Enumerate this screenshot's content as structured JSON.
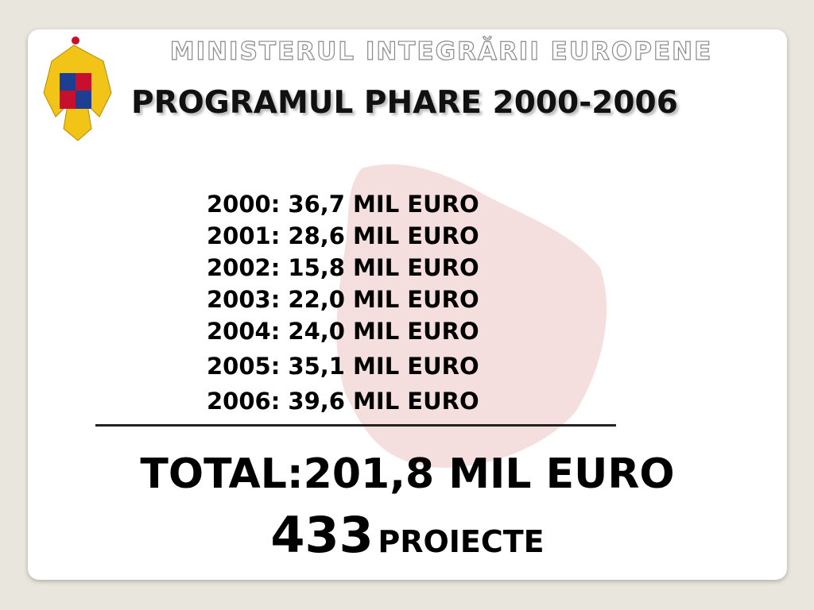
{
  "header": {
    "ministry": "MINISTERUL INTEGRĂRII EUROPENE",
    "program": "PROGRAMUL PHARE 2000-2006"
  },
  "lines": [
    "2000: 36,7 MIL EURO",
    "2001: 28,6 MIL EURO",
    "2002: 15,8 MIL EURO",
    "2003: 22,0 MIL EURO",
    "2004: 24,0 MIL EURO",
    "2005: 35,1 MIL EURO",
    "2006: 39,6 MIL EURO"
  ],
  "total": "TOTAL:201,8 MIL EURO",
  "projects": {
    "count": "433",
    "label": "PROIECTE"
  }
}
